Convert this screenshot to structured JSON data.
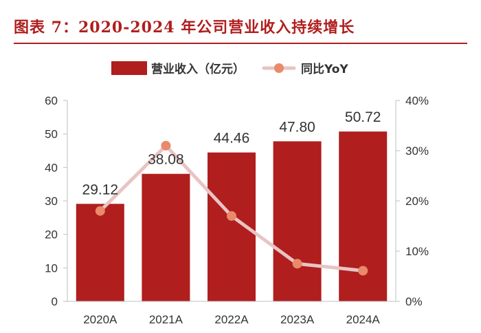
{
  "title": "图表 7：2020-2024 年公司营业收入持续增长",
  "chart_data": {
    "type": "bar",
    "categories": [
      "2020A",
      "2021A",
      "2022A",
      "2023A",
      "2024A"
    ],
    "series": [
      {
        "name": "营业收入（亿元）",
        "type": "bar",
        "axis": "left",
        "values": [
          29.12,
          38.08,
          44.46,
          47.8,
          50.72
        ],
        "color": "#b01e1e"
      },
      {
        "name": "同比YoY",
        "type": "line",
        "axis": "right",
        "values": [
          18,
          31,
          17,
          7.5,
          6.1
        ],
        "color": "#e8c4c4",
        "marker_color": "#e98a6a"
      }
    ],
    "y_left": {
      "lim": [
        0,
        60
      ],
      "ticks": [
        "0",
        "10",
        "20",
        "30",
        "40",
        "50",
        "60"
      ]
    },
    "y_right": {
      "lim": [
        0,
        40
      ],
      "ticks": [
        "0%",
        "10%",
        "20%",
        "30%",
        "40%"
      ]
    },
    "data_labels": [
      "29.12",
      "38.08",
      "44.46",
      "47.80",
      "50.72"
    ],
    "legend_position": "top",
    "grid": false
  }
}
